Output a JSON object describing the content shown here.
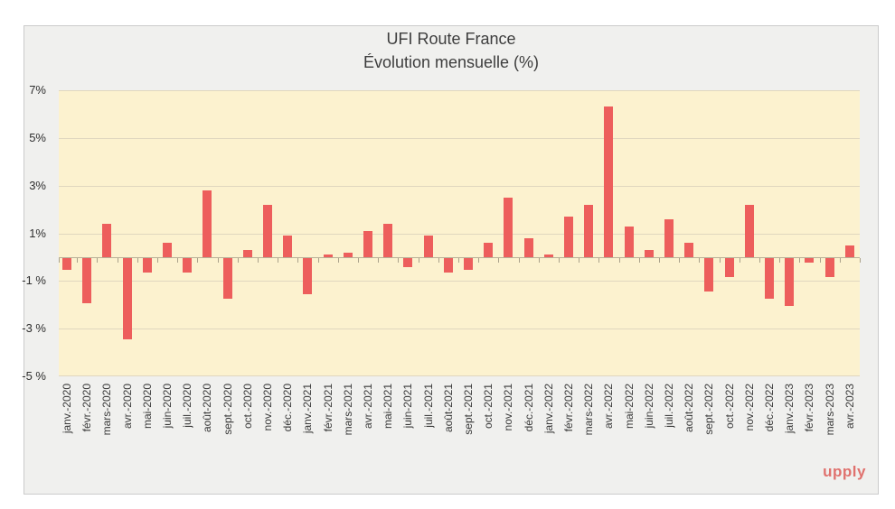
{
  "branding": {
    "logo_text": "upply",
    "logo_color": "#e0716d"
  },
  "colors": {
    "page_background": "#ffffff",
    "card_background": "#f0f0ee",
    "card_border": "#cbcbcb",
    "plot_background": "#fcf2cf",
    "bar_color": "#ed5e5c",
    "gridline_color": "#e0d7bf",
    "axis_line_color": "#b9b098",
    "text_color": "#3d3d3d"
  },
  "chart_data": {
    "type": "bar",
    "title_line1": "UFI Route France",
    "title_line2": "Évolution mensuelle (%)",
    "unit": "%",
    "grid": true,
    "legend": "none",
    "ylim": [
      -5,
      7
    ],
    "ytick_values": [
      7,
      5,
      3,
      1,
      -1,
      -3,
      -5
    ],
    "ytick_labels": [
      "7%",
      "5%",
      "3%",
      "1%",
      "-1 %",
      "-3 %",
      "-5 %"
    ],
    "categories": [
      "janv.-2020",
      "févr.-2020",
      "mars-2020",
      "avr.-2020",
      "mai-2020",
      "juin-2020",
      "juil.-2020",
      "août-2020",
      "sept.-2020",
      "oct.-2020",
      "nov.-2020",
      "déc.-2020",
      "janv.-2021",
      "févr.-2021",
      "mars-2021",
      "avr.-2021",
      "mai-2021",
      "juin-2021",
      "juil.-2021",
      "août-2021",
      "sept.-2021",
      "oct.-2021",
      "nov.-2021",
      "déc.-2021",
      "janv.-2022",
      "févr.-2022",
      "mars-2022",
      "avr.-2022",
      "mai-2022",
      "juin-2022",
      "juil.-2022",
      "août-2022",
      "sept.-2022",
      "oct.-2022",
      "nov.-2022",
      "déc.-2022",
      "janv.-2023",
      "févr.-2023",
      "mars-2023",
      "avr.-2023"
    ],
    "values": [
      -0.5,
      -1.9,
      1.4,
      -3.4,
      -0.6,
      0.6,
      -0.6,
      2.8,
      -1.7,
      0.3,
      2.2,
      0.9,
      -1.5,
      0.1,
      0.2,
      1.1,
      1.4,
      -0.4,
      0.9,
      -0.6,
      -0.5,
      0.6,
      2.5,
      0.8,
      0.1,
      1.7,
      2.2,
      6.3,
      1.3,
      0.3,
      1.6,
      0.6,
      -1.4,
      -0.8,
      2.2,
      -1.7,
      -2.0,
      -0.2,
      -0.8,
      0.5
    ]
  }
}
